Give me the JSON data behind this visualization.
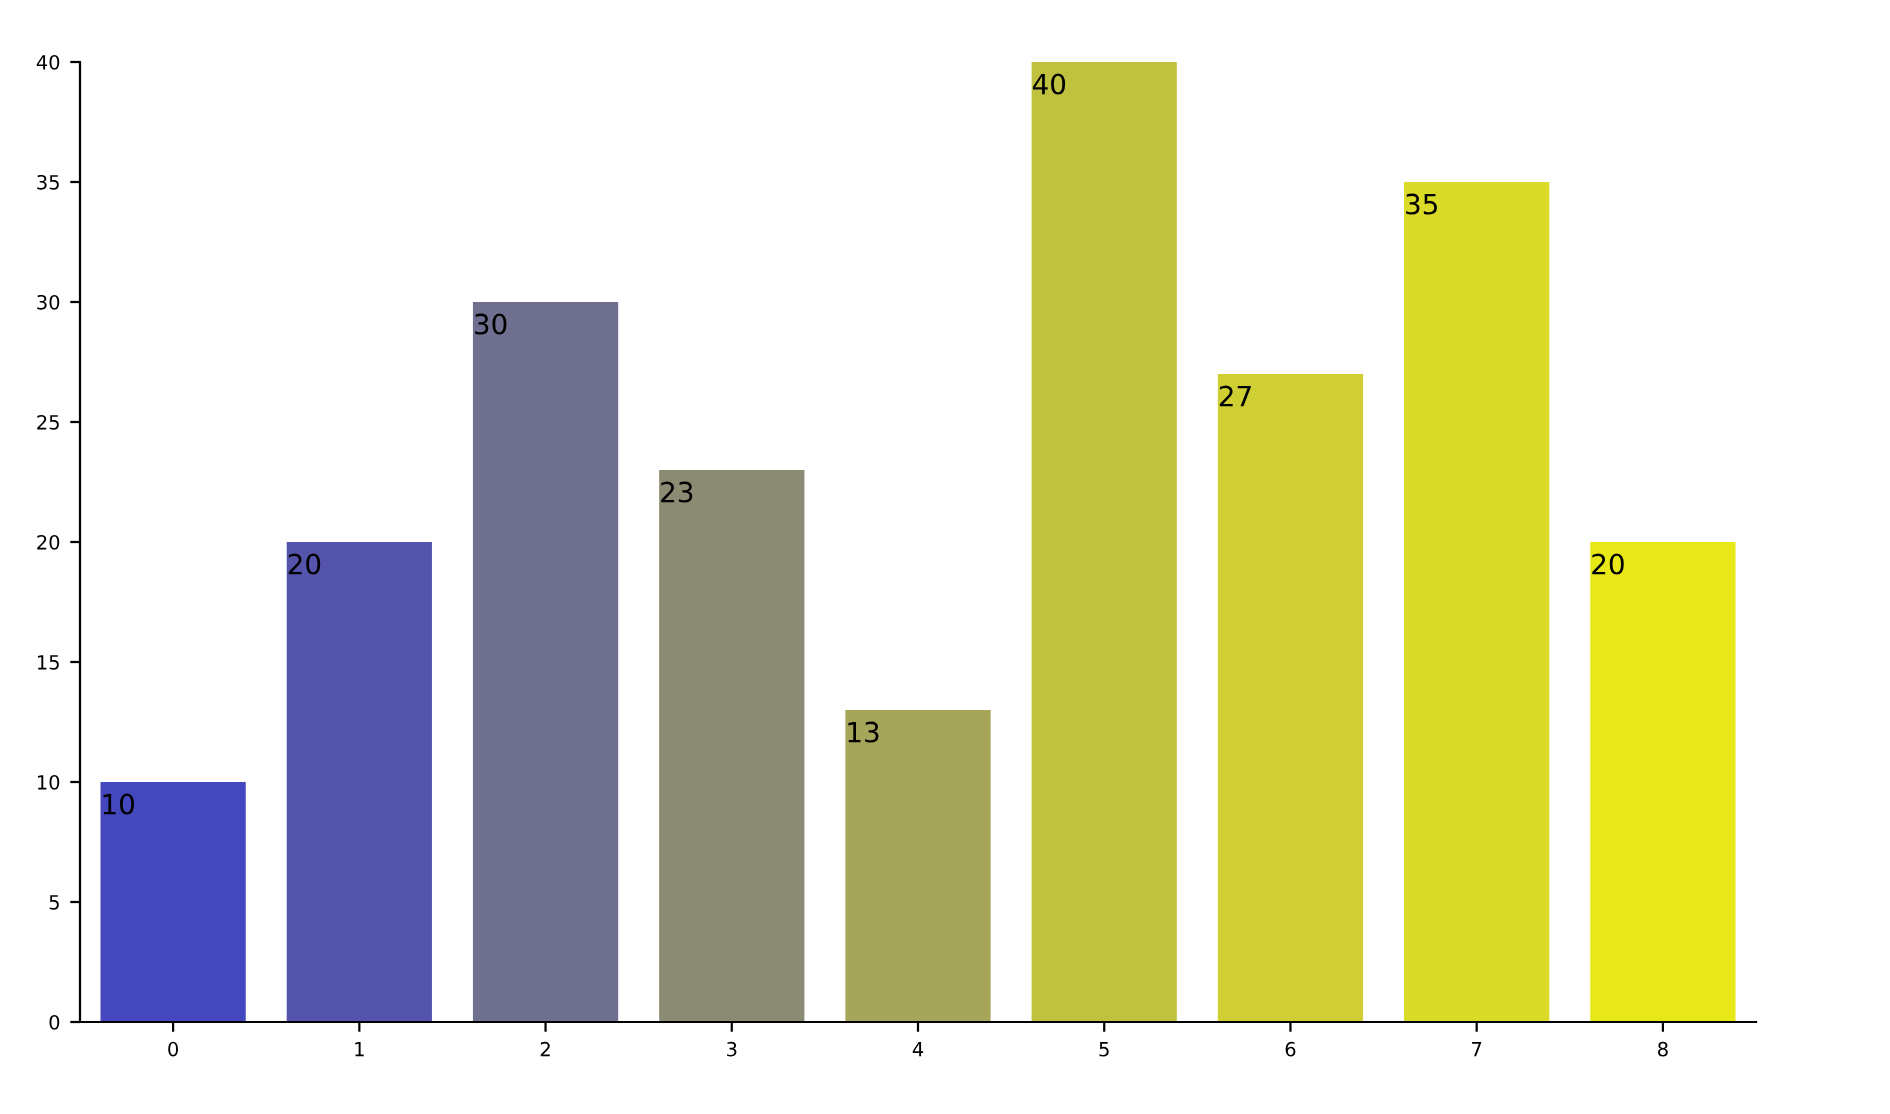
{
  "chart_data": {
    "type": "bar",
    "categories": [
      "0",
      "1",
      "2",
      "3",
      "4",
      "5",
      "6",
      "7",
      "8"
    ],
    "values": [
      10,
      20,
      30,
      23,
      13,
      40,
      27,
      35,
      20
    ],
    "colors": [
      "#4447be",
      "#5454ad",
      "#6f6f8f",
      "#8b8b74",
      "#a6a65b",
      "#c1c140",
      "#cfcf34",
      "#dada28",
      "#e8e818"
    ],
    "ylim": [
      0,
      40
    ],
    "yticks": [
      0,
      5,
      10,
      15,
      20,
      25,
      30,
      35,
      40
    ],
    "data_labels": true,
    "grid": false,
    "legend": false
  }
}
